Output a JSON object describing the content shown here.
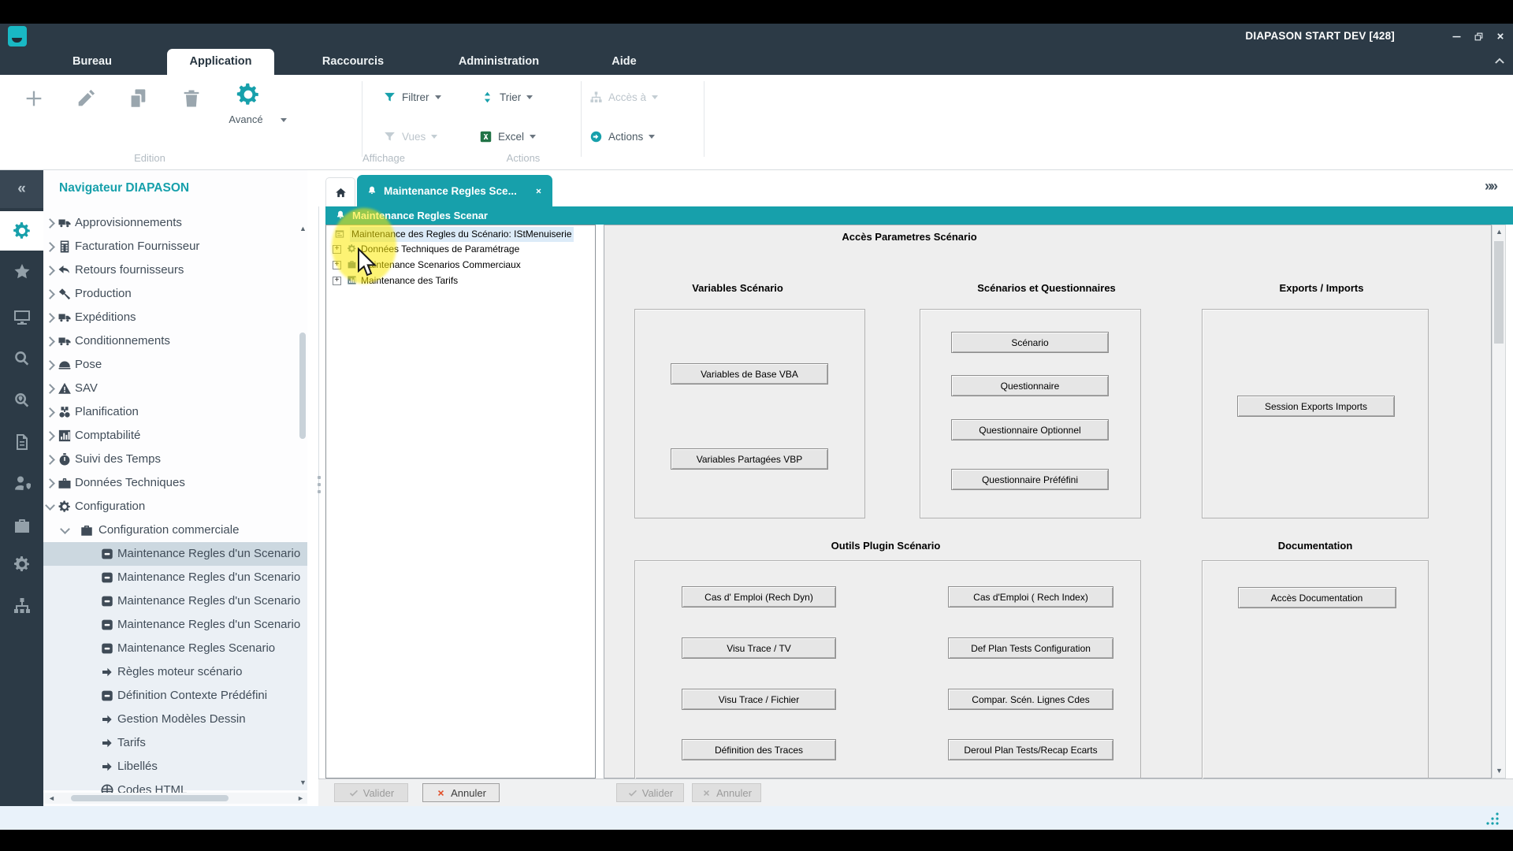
{
  "window": {
    "title": "DIAPASON START DEV [428]"
  },
  "menu_tabs": [
    {
      "label": "Bureau",
      "active": false
    },
    {
      "label": "Application",
      "active": true
    },
    {
      "label": "Raccourcis",
      "active": false
    },
    {
      "label": "Administration",
      "active": false
    },
    {
      "label": "Aide",
      "active": false
    }
  ],
  "ribbon": {
    "groups": [
      {
        "label": "Edition"
      },
      {
        "label": "Affichage"
      },
      {
        "label": "Actions"
      }
    ],
    "tools": [
      {
        "name": "add",
        "icon": "plus"
      },
      {
        "name": "edit",
        "icon": "pencil"
      },
      {
        "name": "duplicate",
        "icon": "copy"
      },
      {
        "name": "delete",
        "icon": "trash"
      }
    ],
    "advanced_label": "Avancé",
    "commands": [
      {
        "id": "filtrer",
        "label": "Filtrer",
        "icon": "filter",
        "enabled": true
      },
      {
        "id": "trier",
        "label": "Trier",
        "icon": "sort",
        "enabled": true
      },
      {
        "id": "acces",
        "label": "Accès à",
        "icon": "sitemap",
        "enabled": false
      },
      {
        "id": "vues",
        "label": "Vues",
        "icon": "filter",
        "enabled": false
      },
      {
        "id": "excel",
        "label": "Excel",
        "icon": "excel",
        "enabled": true
      },
      {
        "id": "actions",
        "label": "Actions",
        "icon": "actions",
        "enabled": true
      }
    ]
  },
  "iconbar": [
    {
      "name": "collapse-sidebar",
      "icon": "chevrons-left"
    },
    {
      "name": "modules",
      "icon": "gear",
      "active": true
    },
    {
      "name": "favorites",
      "icon": "star"
    },
    {
      "name": "sessions",
      "icon": "monitor"
    },
    {
      "name": "search",
      "icon": "search"
    },
    {
      "name": "search-advanced",
      "icon": "search-pin"
    },
    {
      "name": "invoices",
      "icon": "invoice"
    },
    {
      "name": "users",
      "icon": "user-shield"
    },
    {
      "name": "business",
      "icon": "briefcase"
    },
    {
      "name": "settings",
      "icon": "gear"
    },
    {
      "name": "organization",
      "icon": "sitemap"
    }
  ],
  "sidebar": {
    "title": "Navigateur DIAPASON",
    "items": [
      {
        "label": "Approvisionnements",
        "icon": "truck",
        "chevron": "right",
        "indent": 0
      },
      {
        "label": "Facturation Fournisseur",
        "icon": "calculator",
        "chevron": "right",
        "indent": 0
      },
      {
        "label": "Retours fournisseurs",
        "icon": "reply",
        "chevron": "right",
        "indent": 0
      },
      {
        "label": "Production",
        "icon": "hammer",
        "chevron": "right",
        "indent": 0
      },
      {
        "label": "Expéditions",
        "icon": "truck",
        "chevron": "right",
        "indent": 0
      },
      {
        "label": "Conditionnements",
        "icon": "truck",
        "chevron": "right",
        "indent": 0
      },
      {
        "label": "Pose",
        "icon": "helmet",
        "chevron": "right",
        "indent": 0
      },
      {
        "label": "SAV",
        "icon": "warning",
        "chevron": "right",
        "indent": 0
      },
      {
        "label": "Planification",
        "icon": "binoculars",
        "chevron": "right",
        "indent": 0
      },
      {
        "label": "Comptabilité",
        "icon": "chart",
        "chevron": "right",
        "indent": 0
      },
      {
        "label": "Suivi des Temps",
        "icon": "stopwatch",
        "chevron": "right",
        "indent": 0
      },
      {
        "label": "Données Techniques",
        "icon": "toolbox",
        "chevron": "right",
        "indent": 0
      },
      {
        "label": "Configuration",
        "icon": "gear",
        "chevron": "down",
        "indent": 0
      },
      {
        "label": "Configuration commerciale",
        "icon": "briefcase",
        "chevron": "down",
        "indent": 1
      },
      {
        "label": "Maintenance Regles d'un Scenario",
        "icon": "inbox",
        "indent": 2,
        "selected": true
      },
      {
        "label": "Maintenance Regles d'un Scenario",
        "icon": "inbox",
        "indent": 2
      },
      {
        "label": "Maintenance Regles d'un Scenario",
        "icon": "inbox",
        "indent": 2
      },
      {
        "label": "Maintenance Regles d'un Scenario",
        "icon": "inbox",
        "indent": 2
      },
      {
        "label": "Maintenance Regles Scenario",
        "icon": "inbox",
        "indent": 2
      },
      {
        "label": "Règles moteur scénario",
        "icon": "arrow-right",
        "indent": 2
      },
      {
        "label": "Définition Contexte Prédéfini",
        "icon": "inbox",
        "indent": 2
      },
      {
        "label": "Gestion Modèles Dessin",
        "icon": "arrow-right",
        "indent": 2
      },
      {
        "label": "Tarifs",
        "icon": "arrow-right",
        "indent": 2
      },
      {
        "label": "Libellés",
        "icon": "arrow-right",
        "indent": 2
      },
      {
        "label": "Codes HTML",
        "icon": "globe",
        "indent": 2
      }
    ]
  },
  "workspace": {
    "tab_label": "Maintenance Regles Sce...",
    "bar_label": "Maintenance Regles Scenar"
  },
  "tree": {
    "items": [
      {
        "label": "Maintenance des Regles du Scénario: IStMenuiserie",
        "icon": "form",
        "root": true,
        "selected": true
      },
      {
        "label": "Données Techniques de Paramétrage",
        "icon": "gear",
        "expander": true
      },
      {
        "label": "Maintenance Scenarios Commerciaux",
        "icon": "briefcase",
        "expander": true
      },
      {
        "label": "Maintenance des Tarifs",
        "icon": "chart",
        "expander": true
      }
    ]
  },
  "form": {
    "title": "Accès Parametres Scénario",
    "sections": [
      {
        "id": "variables",
        "header": "Variables Scénario",
        "buttons": [
          "Variables de Base VBA",
          "Variables Partagées VBP"
        ]
      },
      {
        "id": "scenarios",
        "header": "Scénarios et Questionnaires",
        "buttons": [
          "Scénario",
          "Questionnaire",
          "Questionnaire Optionnel",
          "Questionnaire Préféfini"
        ]
      },
      {
        "id": "exports",
        "header": "Exports / Imports",
        "buttons": [
          "Session Exports Imports"
        ]
      },
      {
        "id": "outils",
        "header": "Outils Plugin Scénario",
        "columns": [
          [
            "Cas d' Emploi (Rech Dyn)",
            "Visu Trace / TV",
            "Visu Trace / Fichier",
            "Définition des Traces"
          ],
          [
            "Cas d'Emploi ( Rech Index)",
            "Def Plan Tests Configuration",
            "Compar. Scén. Lignes Cdes",
            "Deroul Plan Tests/Recap Ecarts"
          ]
        ]
      },
      {
        "id": "documentation",
        "header": "Documentation",
        "buttons": [
          "Accès Documentation"
        ]
      }
    ]
  },
  "footer": {
    "validate_label": "Valider",
    "cancel_label": "Annuler"
  },
  "colors": {
    "accent": "#17a0ab",
    "chrome_dark": "#2c3a46",
    "selection": "#ccd8e0",
    "highlight": "#fce902",
    "excel_green": "#217346",
    "cancel_red": "#e2502a"
  }
}
